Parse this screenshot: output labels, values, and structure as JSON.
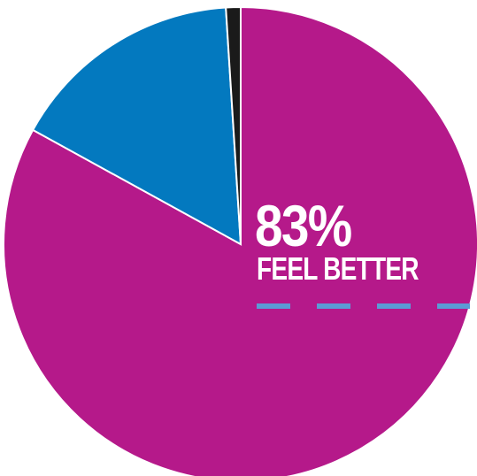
{
  "chart_data": {
    "type": "pie",
    "title": "",
    "slices": [
      {
        "value": 83,
        "color": "#B5198A"
      },
      {
        "value": 16,
        "color": "#0379BF"
      },
      {
        "value": 1,
        "color": "#1A1A1A"
      }
    ],
    "start_angle_deg": 0,
    "direction": "clockwise",
    "slice_border_color": "#ffffff",
    "callout": {
      "value": "83%",
      "label": "FEEL BETTER",
      "dash_color": "#5B9BD5"
    }
  }
}
